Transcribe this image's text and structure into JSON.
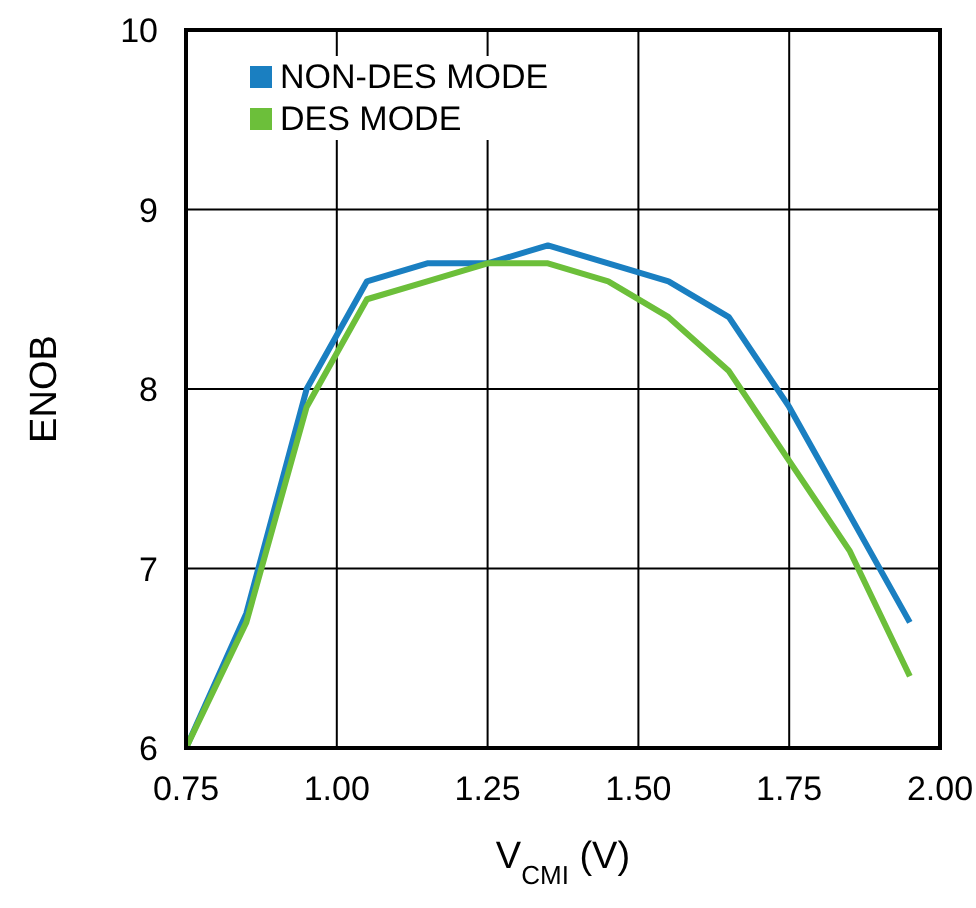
{
  "chart_data": {
    "type": "line",
    "xlabel": "V$_{CMI}$ (V)",
    "ylabel": "ENOB",
    "x": [
      0.75,
      0.85,
      0.95,
      1.05,
      1.15,
      1.25,
      1.35,
      1.45,
      1.55,
      1.65,
      1.75,
      1.85,
      1.95
    ],
    "series": [
      {
        "name": "NON-DES MODE",
        "color": "#1a7fc1",
        "values": [
          6.0,
          6.75,
          8.0,
          8.6,
          8.7,
          8.7,
          8.8,
          8.7,
          8.6,
          8.4,
          7.9,
          7.3,
          6.7
        ]
      },
      {
        "name": "DES MODE",
        "color": "#6cbf3a",
        "values": [
          6.0,
          6.7,
          7.9,
          8.5,
          8.6,
          8.7,
          8.7,
          8.6,
          8.4,
          8.1,
          7.6,
          7.1,
          6.4
        ]
      }
    ],
    "xlim": [
      0.75,
      2.0
    ],
    "xticks": [
      {
        "value": 0.75,
        "label": "0.75"
      },
      {
        "value": 1.0,
        "label": "1.00"
      },
      {
        "value": 1.25,
        "label": "1.25"
      },
      {
        "value": 1.5,
        "label": "1.50"
      },
      {
        "value": 1.75,
        "label": "1.75"
      },
      {
        "value": 2.0,
        "label": "2.00"
      }
    ],
    "ylim": [
      6,
      10
    ],
    "yticks": [
      6,
      7,
      8,
      9,
      10
    ],
    "grid": true,
    "legend": "top left",
    "marker": "none",
    "line_style": "solid"
  }
}
